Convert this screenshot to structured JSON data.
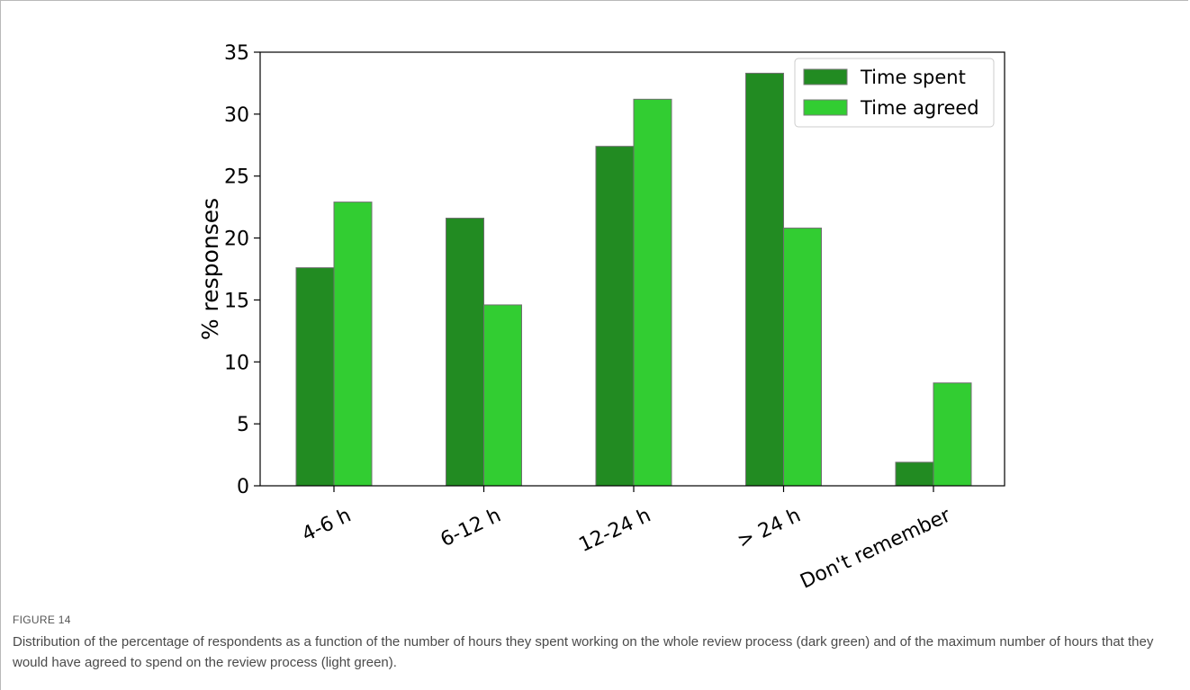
{
  "chart_data": {
    "type": "bar",
    "categories": [
      "4-6 h",
      "6-12 h",
      "12-24 h",
      "> 24 h",
      "Don't remember"
    ],
    "series": [
      {
        "name": "Time spent",
        "values": [
          17.6,
          21.6,
          27.4,
          33.3,
          1.9
        ],
        "color": "#228b22"
      },
      {
        "name": "Time agreed",
        "values": [
          22.9,
          14.6,
          31.2,
          20.8,
          8.3
        ],
        "color": "#32cd32"
      }
    ],
    "ylabel": "% responses",
    "xlabel": "",
    "ylim": [
      0,
      35
    ],
    "yticks": [
      0,
      5,
      10,
      15,
      20,
      25,
      30,
      35
    ],
    "grid": false,
    "legend": "top-right"
  },
  "caption": {
    "label": "FIGURE 14",
    "text": "Distribution of the percentage of respondents as a function of the number of hours they spent working on the whole review process (dark green) and of the maximum number of hours that they would have agreed to spend on the review process (light green)."
  }
}
